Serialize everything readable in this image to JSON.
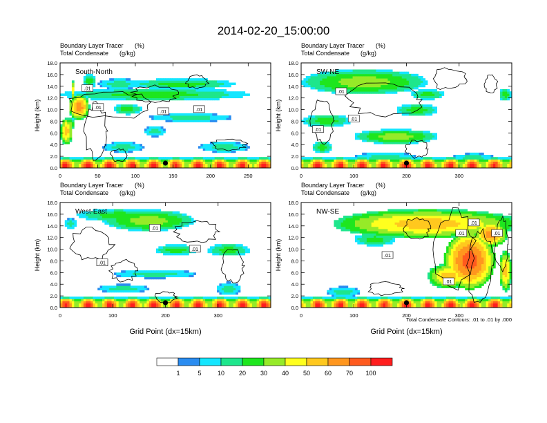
{
  "title": "2014-02-20_15:00:00",
  "footer_note": "Total Condensate Contours: .01 to .01 by .000",
  "colorbar": {
    "colors": [
      "#ffffff",
      "#2a8cf0",
      "#14e6ff",
      "#1ee68c",
      "#1ee61e",
      "#96ea28",
      "#ffff1e",
      "#ffc81e",
      "#ff961e",
      "#ff5a1e",
      "#ff1e1e"
    ],
    "labels": [
      "1",
      "5",
      "10",
      "20",
      "30",
      "40",
      "50",
      "60",
      "70",
      "100"
    ]
  },
  "chart_data": [
    {
      "type": "heatmap",
      "panel_label": "South-North",
      "left_string_1": "Boundary Layer Tracer",
      "left_string_2": "Total Condensate",
      "right_string_1": "(%)",
      "right_string_2": "(g/kg)",
      "ylabel": "Height (km)",
      "xlabel": "",
      "xlim": [
        0,
        280
      ],
      "ylim": [
        0,
        18
      ],
      "xticks": [
        "0",
        "50",
        "100",
        "150",
        "200",
        "250"
      ],
      "yticks": [
        "0.0",
        "2.0",
        "4.0",
        "6.0",
        "8.0",
        "10.0",
        "12.0",
        "14.0",
        "16.0",
        "18.0"
      ],
      "contour_labels": [
        ".01",
        ".01",
        ".01",
        ".01"
      ],
      "marker_x": 140
    },
    {
      "type": "heatmap",
      "panel_label": "SW-NE",
      "left_string_1": "Boundary Layer Tracer",
      "left_string_2": "Total Condensate",
      "right_string_1": "(%)",
      "right_string_2": "(g/kg)",
      "ylabel": "Height (km)",
      "xlabel": "",
      "xlim": [
        0,
        400
      ],
      "ylim": [
        0,
        18
      ],
      "xticks": [
        "0",
        "100",
        "200",
        "300"
      ],
      "yticks": [
        "0.0",
        "2.0",
        "4.0",
        "6.0",
        "8.0",
        "10.0",
        "12.0",
        "14.0",
        "16.0",
        "18.0"
      ],
      "contour_labels": [
        ".01",
        ".01",
        ".01"
      ],
      "marker_x": 200
    },
    {
      "type": "heatmap",
      "panel_label": "West-East",
      "left_string_1": "Boundary Layer Tracer",
      "left_string_2": "Total Condensate",
      "right_string_1": "(%)",
      "right_string_2": "(g/kg)",
      "ylabel": "Height (km)",
      "xlabel": "Grid Point (dx=15km)",
      "xlim": [
        0,
        400
      ],
      "ylim": [
        0,
        18
      ],
      "xticks": [
        "0",
        "100",
        "200",
        "300"
      ],
      "yticks": [
        "0.0",
        "2.0",
        "4.0",
        "6.0",
        "8.0",
        "10.0",
        "12.0",
        "14.0",
        "16.0",
        "18.0"
      ],
      "contour_labels": [
        ".01",
        ".01",
        ".01"
      ],
      "marker_x": 200
    },
    {
      "type": "heatmap",
      "panel_label": "NW-SE",
      "left_string_1": "Boundary Layer Tracer",
      "left_string_2": "Total Condensate",
      "right_string_1": "(%)",
      "right_string_2": "(g/kg)",
      "ylabel": "Height (km)",
      "xlabel": "Grid Point (dx=15km)",
      "xlim": [
        0,
        400
      ],
      "ylim": [
        0,
        18
      ],
      "xticks": [
        "0",
        "100",
        "200",
        "300"
      ],
      "yticks": [
        "0.0",
        "2.0",
        "4.0",
        "6.0",
        "8.0",
        "10.0",
        "12.0",
        "14.0",
        "16.0",
        "18.0"
      ],
      "contour_labels": [
        ".01",
        ".01",
        ".01",
        ".01",
        ".01"
      ],
      "marker_x": 200
    }
  ]
}
